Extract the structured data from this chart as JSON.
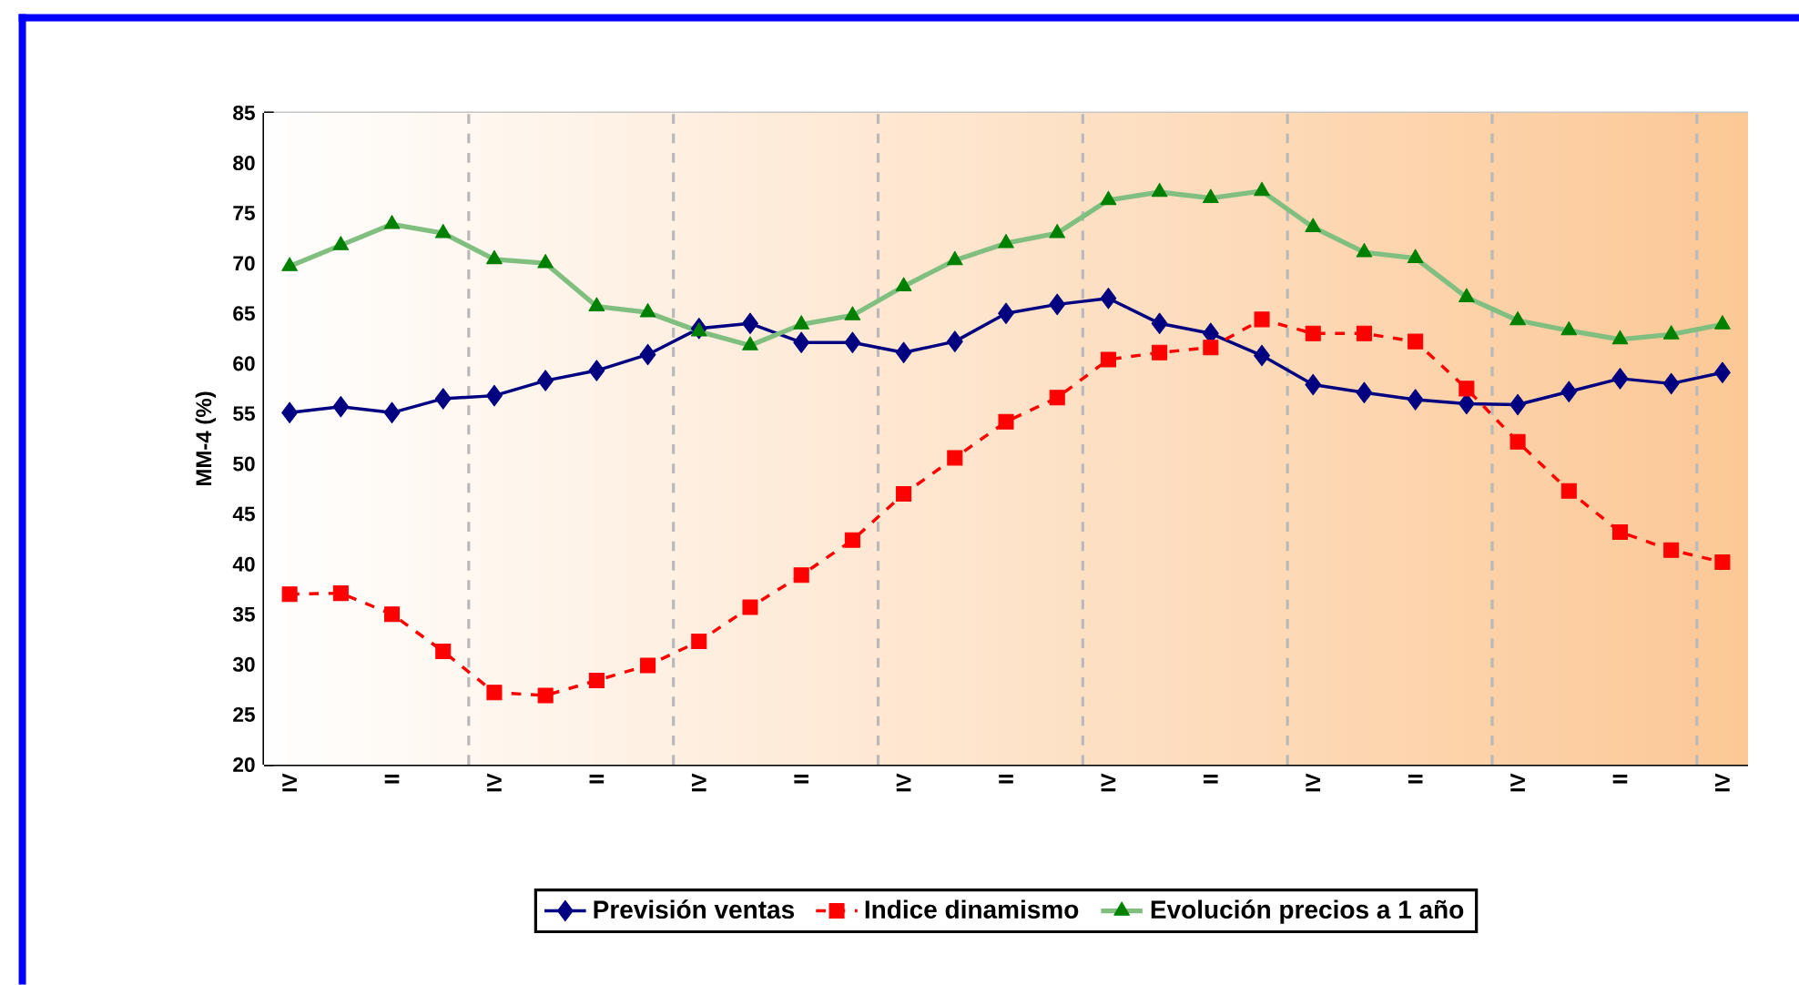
{
  "chart_data": {
    "type": "line",
    "ylabel": "MM-4 (%)",
    "categories": [
      "IV",
      null,
      "II",
      null,
      "IV",
      null,
      "II",
      null,
      "IV",
      null,
      "II",
      null,
      "IV",
      null,
      "II",
      null,
      "IV",
      null,
      "II",
      null,
      "IV",
      null,
      "II",
      null,
      "IV",
      null,
      "II",
      null,
      "IV"
    ],
    "ylim": [
      20,
      85
    ],
    "yticks": [
      20,
      25,
      30,
      35,
      40,
      45,
      50,
      55,
      60,
      65,
      70,
      75,
      80,
      85
    ],
    "grid": true,
    "legend": "bottom",
    "series": [
      {
        "name": "Previsión ventas",
        "color": "#000080",
        "marker": "diamond",
        "line_style": "solid",
        "values": [
          55.1,
          55.7,
          55.1,
          56.5,
          56.8,
          58.3,
          59.3,
          60.9,
          63.5,
          64.0,
          62.1,
          62.1,
          61.1,
          62.2,
          65.0,
          65.9,
          66.5,
          64.0,
          63.0,
          60.8,
          57.9,
          57.1,
          56.4,
          56.0,
          55.9,
          57.2,
          58.5,
          58.0,
          59.1
        ]
      },
      {
        "name": "Indice dinamismo",
        "color": "#ff0000",
        "marker": "square",
        "line_style": "dashed",
        "values": [
          37.0,
          37.1,
          35.0,
          31.3,
          27.2,
          26.9,
          28.4,
          29.9,
          32.3,
          35.7,
          38.9,
          42.4,
          47.0,
          50.6,
          54.2,
          56.6,
          60.4,
          61.1,
          61.6,
          64.4,
          63.0,
          63.0,
          62.2,
          57.5,
          52.2,
          47.3,
          43.2,
          41.4,
          40.2
        ]
      },
      {
        "name": "Evolución precios a 1 año",
        "color": "#008000",
        "marker": "triangle",
        "line_style": "solid",
        "values": [
          69.7,
          71.8,
          73.9,
          73.0,
          70.4,
          70.0,
          65.7,
          65.1,
          63.2,
          61.8,
          63.9,
          64.8,
          67.7,
          70.3,
          72.0,
          73.0,
          76.3,
          77.1,
          76.5,
          77.2,
          73.6,
          71.1,
          70.5,
          66.6,
          64.3,
          63.3,
          62.4,
          62.9,
          63.9
        ]
      }
    ]
  }
}
